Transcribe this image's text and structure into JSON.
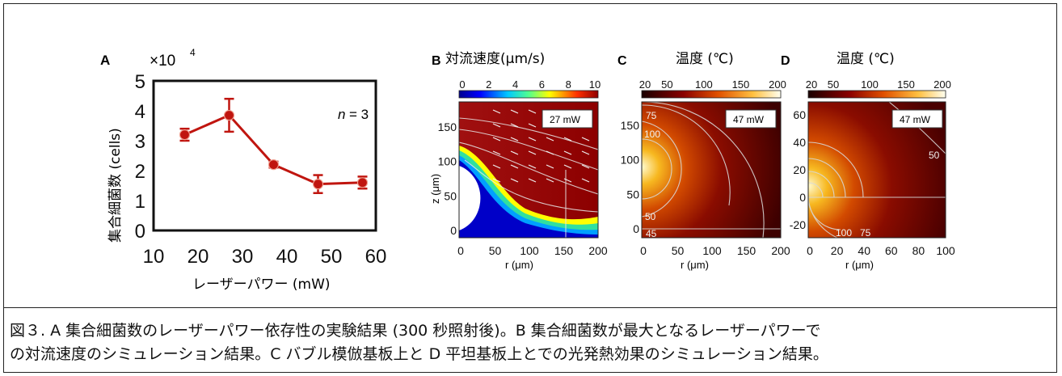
{
  "figure": {
    "panelA": {
      "letter": "A",
      "multiplier": "×10",
      "exponent": "4",
      "ylabel": "集合細菌数 (cells)",
      "xlabel": "レーザーパワー (mW)",
      "n_label": "n",
      "n_value": "= 3"
    },
    "panelB": {
      "letter": "B",
      "title": "対流速度(μm/s)",
      "power": "27 mW",
      "colorbar_ticks": [
        "0",
        "2",
        "4",
        "6",
        "8",
        "10"
      ],
      "xticks": [
        "0",
        "50",
        "100",
        "150",
        "200"
      ],
      "yticks": [
        "150",
        "100",
        "50",
        "0"
      ],
      "xlabel": "r (μm)",
      "ylabel": "z (μm)"
    },
    "panelC": {
      "letter": "C",
      "title": "温度 (℃)",
      "power": "47 mW",
      "colorbar_ticks": [
        "20",
        "50",
        "100",
        "150",
        "200"
      ],
      "xticks": [
        "0",
        "50",
        "100",
        "150",
        "200"
      ],
      "yticks": [
        "150",
        "100",
        "50",
        "0"
      ],
      "xlabel": "r (μm)",
      "contours": [
        "75",
        "100",
        "50",
        "45"
      ]
    },
    "panelD": {
      "letter": "D",
      "title": "温度 (℃)",
      "power": "47 mW",
      "colorbar_ticks": [
        "20",
        "50",
        "100",
        "150",
        "200"
      ],
      "xticks": [
        "0",
        "20",
        "40",
        "60",
        "80",
        "100"
      ],
      "yticks": [
        "60",
        "40",
        "20",
        "0",
        "-20"
      ],
      "xlabel": "r (μm)",
      "contours": [
        "50",
        "100",
        "75"
      ]
    }
  },
  "chart_data": {
    "type": "line",
    "x": [
      17,
      27,
      37,
      47,
      57
    ],
    "series": [
      {
        "values": [
          3.2,
          3.85,
          2.2,
          1.55,
          1.6
        ],
        "errors": [
          0.2,
          0.55,
          0.1,
          0.3,
          0.2
        ]
      }
    ],
    "xticks": [
      "10",
      "20",
      "30",
      "40",
      "50",
      "60"
    ],
    "yticks": [
      "0",
      "1",
      "2",
      "3",
      "4",
      "5"
    ],
    "xlim": [
      10,
      60
    ],
    "ylim": [
      0,
      5
    ],
    "ylabel": "集合細菌数 (cells)",
    "xlabel": "レーザーパワー (mW)",
    "color": "#c0150f"
  },
  "caption": {
    "line1": "図３. A 集合細菌数のレーザーパワー依存性の実験結果 (300 秒照射後)。B 集合細菌数が最大となるレーザーパワーで",
    "line2": "の対流速度のシミュレーション結果。C バブル模倣基板上と D 平坦基板上とでの光発熱効果のシミュレーション結果。"
  }
}
